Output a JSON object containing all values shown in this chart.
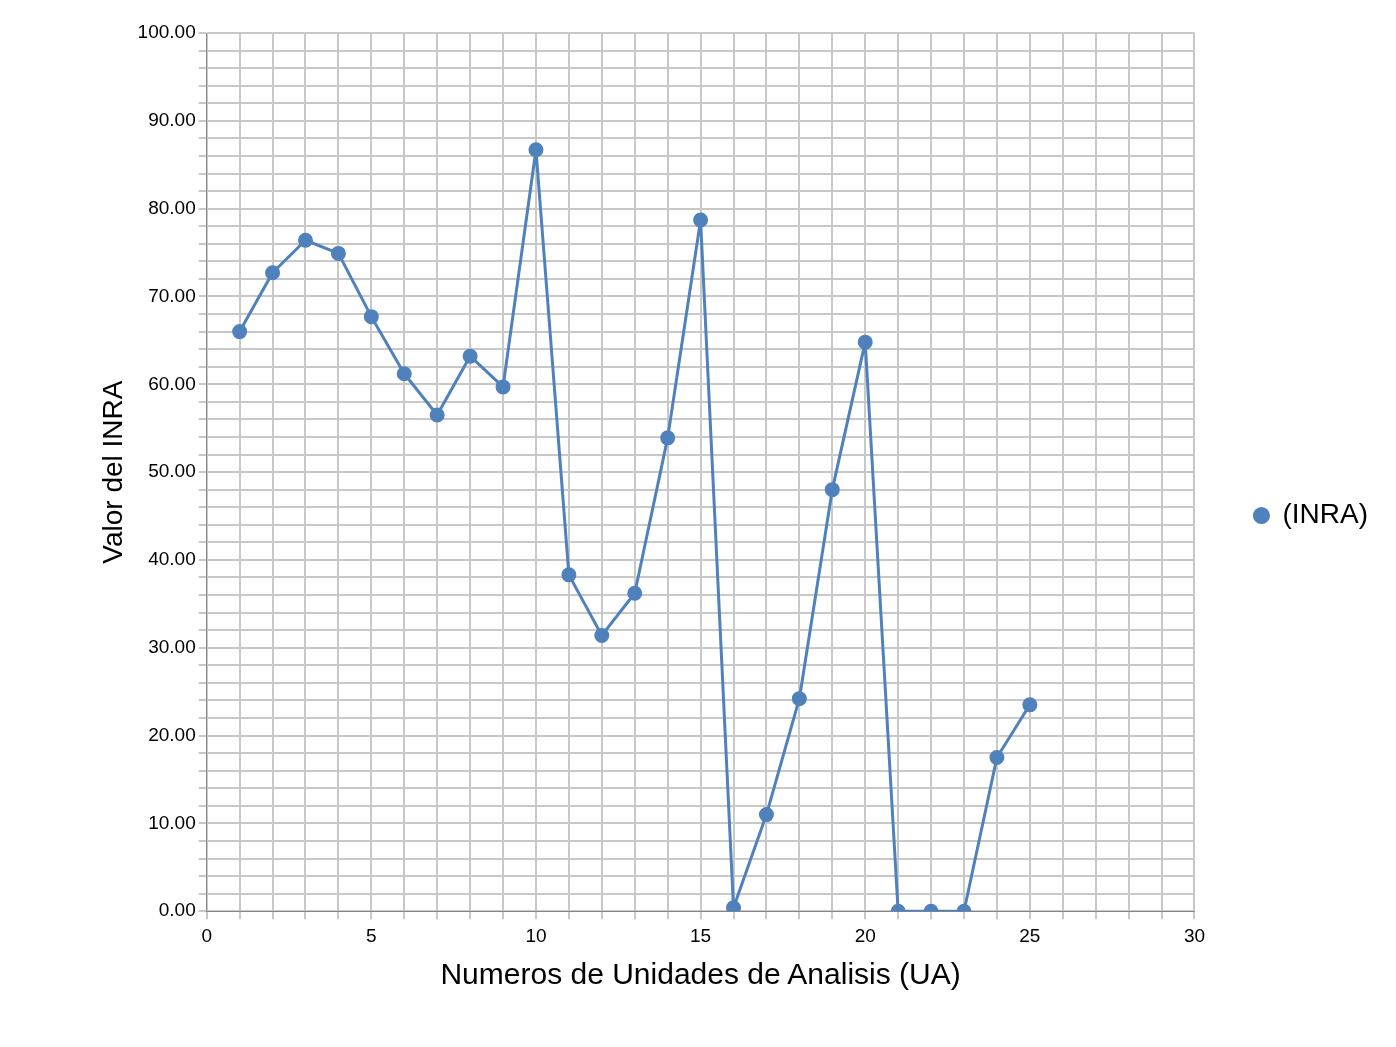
{
  "chart_data": {
    "type": "line",
    "xlabel": "Numeros de Unidades de Analisis (UA)",
    "ylabel": "Valor del INRA",
    "x": [
      1,
      2,
      3,
      4,
      5,
      6,
      7,
      8,
      9,
      10,
      11,
      12,
      13,
      14,
      15,
      16,
      17,
      18,
      19,
      20,
      21,
      22,
      23,
      24,
      25
    ],
    "series": [
      {
        "name": "(INRA)",
        "color": "#4f81bd",
        "values": [
          66.0,
          72.7,
          76.4,
          74.9,
          67.7,
          61.2,
          56.5,
          63.2,
          59.7,
          86.7,
          38.3,
          31.4,
          36.2,
          53.9,
          78.7,
          0.4,
          11.0,
          24.2,
          48.0,
          64.8,
          0,
          0,
          0,
          17.5,
          23.5
        ]
      }
    ],
    "xlim": [
      0,
      30
    ],
    "ylim": [
      0,
      100
    ],
    "xticks": [
      0,
      {
        "value": 1,
        "label": null
      },
      {
        "value": 2,
        "label": null
      },
      {
        "value": 3,
        "label": null
      },
      {
        "value": 4,
        "label": null
      },
      5,
      {
        "value": 6,
        "label": null
      },
      {
        "value": 7,
        "label": null
      },
      {
        "value": 8,
        "label": null
      },
      {
        "value": 9,
        "label": null
      },
      10,
      {
        "value": 11,
        "label": null
      },
      {
        "value": 12,
        "label": null
      },
      {
        "value": 13,
        "label": null
      },
      {
        "value": 14,
        "label": null
      },
      15,
      {
        "value": 16,
        "label": null
      },
      {
        "value": 17,
        "label": null
      },
      {
        "value": 18,
        "label": null
      },
      {
        "value": 19,
        "label": null
      },
      20,
      {
        "value": 21,
        "label": null
      },
      {
        "value": 22,
        "label": null
      },
      {
        "value": 23,
        "label": null
      },
      {
        "value": 24,
        "label": null
      },
      25,
      {
        "value": 26,
        "label": null
      },
      {
        "value": 27,
        "label": null
      },
      {
        "value": 28,
        "label": null
      },
      {
        "value": 29,
        "label": null
      },
      30
    ],
    "yticks": [
      {
        "value": 0,
        "label": "0.00"
      },
      {
        "value": 2,
        "label": null
      },
      {
        "value": 4,
        "label": null
      },
      {
        "value": 6,
        "label": null
      },
      {
        "value": 8,
        "label": null
      },
      {
        "value": 10,
        "label": "10.00"
      },
      {
        "value": 12,
        "label": null
      },
      {
        "value": 14,
        "label": null
      },
      {
        "value": 16,
        "label": null
      },
      {
        "value": 18,
        "label": null
      },
      {
        "value": 20,
        "label": "20.00"
      },
      {
        "value": 22,
        "label": null
      },
      {
        "value": 24,
        "label": null
      },
      {
        "value": 26,
        "label": null
      },
      {
        "value": 28,
        "label": null
      },
      {
        "value": 30,
        "label": "30.00"
      },
      {
        "value": 32,
        "label": null
      },
      {
        "value": 34,
        "label": null
      },
      {
        "value": 36,
        "label": null
      },
      {
        "value": 38,
        "label": null
      },
      {
        "value": 40,
        "label": "40.00"
      },
      {
        "value": 42,
        "label": null
      },
      {
        "value": 44,
        "label": null
      },
      {
        "value": 46,
        "label": null
      },
      {
        "value": 48,
        "label": null
      },
      {
        "value": 50,
        "label": "50.00"
      },
      {
        "value": 52,
        "label": null
      },
      {
        "value": 54,
        "label": null
      },
      {
        "value": 56,
        "label": null
      },
      {
        "value": 58,
        "label": null
      },
      {
        "value": 60,
        "label": "60.00"
      },
      {
        "value": 62,
        "label": null
      },
      {
        "value": 64,
        "label": null
      },
      {
        "value": 66,
        "label": null
      },
      {
        "value": 68,
        "label": null
      },
      {
        "value": 70,
        "label": "70.00"
      },
      {
        "value": 72,
        "label": null
      },
      {
        "value": 74,
        "label": null
      },
      {
        "value": 76,
        "label": null
      },
      {
        "value": 78,
        "label": null
      },
      {
        "value": 80,
        "label": "80.00"
      },
      {
        "value": 82,
        "label": null
      },
      {
        "value": 84,
        "label": null
      },
      {
        "value": 86,
        "label": null
      },
      {
        "value": 88,
        "label": null
      },
      {
        "value": 90,
        "label": "90.00"
      },
      {
        "value": 92,
        "label": null
      },
      {
        "value": 94,
        "label": null
      },
      {
        "value": 96,
        "label": null
      },
      {
        "value": 98,
        "label": null
      },
      {
        "value": 100,
        "label": "100.00"
      }
    ],
    "grid": true,
    "legend": "right",
    "marker": "circle",
    "line_style": "solid"
  }
}
